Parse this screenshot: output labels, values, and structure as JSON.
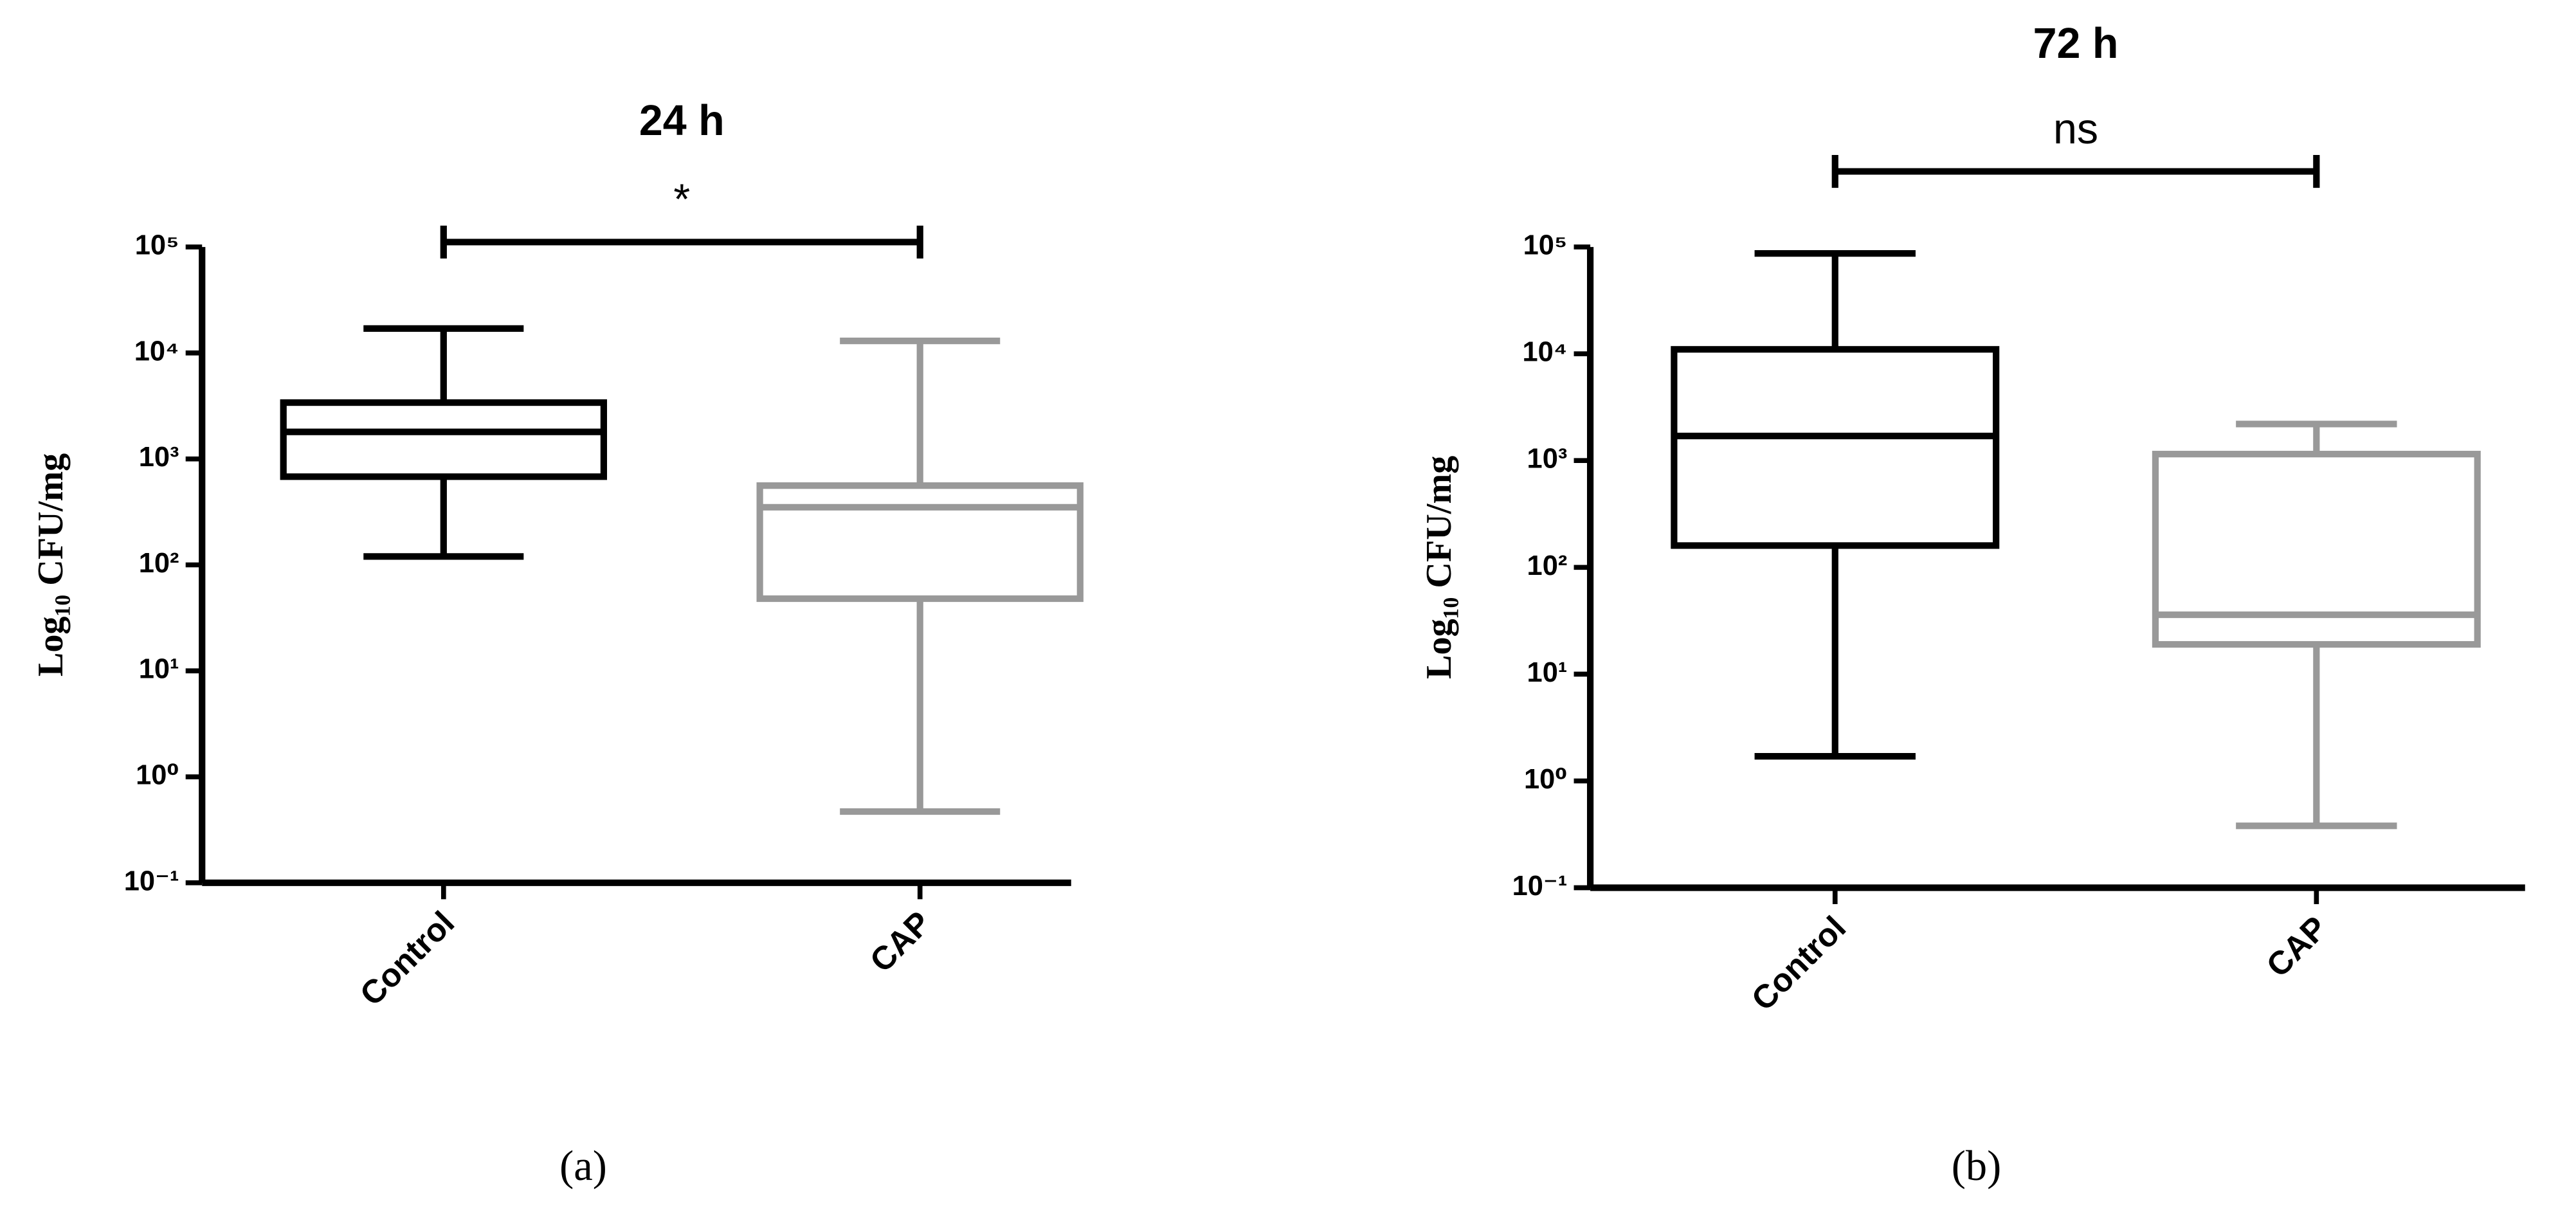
{
  "chart_data": [
    {
      "type": "box",
      "title": "24 h",
      "ylabel": "Log₁₀ CFU/mg",
      "caption": "(a)",
      "annotation": "*",
      "log_scale": true,
      "ylim": [
        0.1,
        100000
      ],
      "yticks": [
        {
          "value": 0.1,
          "label": "10⁻¹"
        },
        {
          "value": 1,
          "label": "10⁰"
        },
        {
          "value": 10,
          "label": "10¹"
        },
        {
          "value": 100,
          "label": "10²"
        },
        {
          "value": 1000,
          "label": "10³"
        },
        {
          "value": 10000,
          "label": "10⁴"
        },
        {
          "value": 100000,
          "label": "10⁵"
        }
      ],
      "categories": [
        "Control",
        "CAP"
      ],
      "boxes": [
        {
          "min": 120,
          "q1": 680,
          "median": 1800,
          "q3": 3400,
          "max": 17000,
          "color": "#000000"
        },
        {
          "min": 0.47,
          "q1": 48,
          "median": 350,
          "q3": 560,
          "max": 13000,
          "color": "#999999"
        }
      ]
    },
    {
      "type": "box",
      "title": "72 h",
      "ylabel": "Log₁₀ CFU/mg",
      "caption": "(b)",
      "annotation": "ns",
      "log_scale": true,
      "ylim": [
        0.1,
        100000
      ],
      "yticks": [
        {
          "value": 0.1,
          "label": "10⁻¹"
        },
        {
          "value": 1,
          "label": "10⁰"
        },
        {
          "value": 10,
          "label": "10¹"
        },
        {
          "value": 100,
          "label": "10²"
        },
        {
          "value": 1000,
          "label": "10³"
        },
        {
          "value": 10000,
          "label": "10⁴"
        },
        {
          "value": 100000,
          "label": "10⁵"
        }
      ],
      "categories": [
        "Control",
        "CAP"
      ],
      "boxes": [
        {
          "min": 1.7,
          "q1": 160,
          "median": 1700,
          "q3": 11000,
          "max": 87000,
          "color": "#000000"
        },
        {
          "min": 0.38,
          "q1": 19,
          "median": 36,
          "q3": 1150,
          "max": 2200,
          "color": "#999999"
        }
      ]
    }
  ]
}
